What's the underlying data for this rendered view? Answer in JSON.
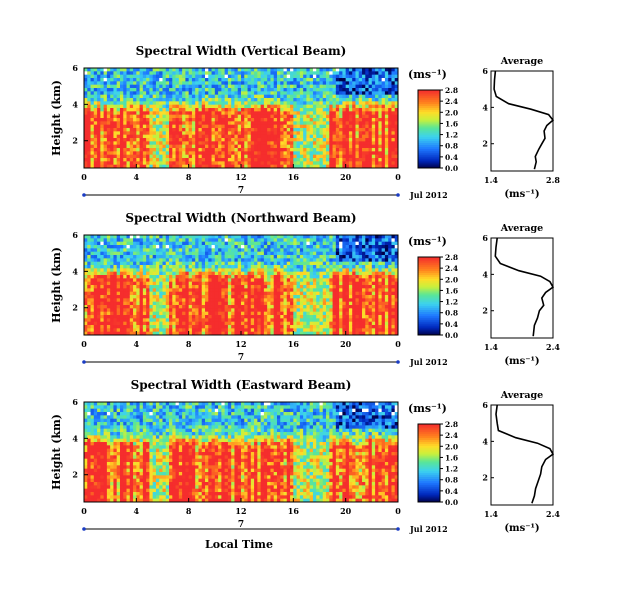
{
  "figure": {
    "xlabel": "Local Time",
    "date_label": "Jul 2012",
    "day_label": "7",
    "unit_label": "(ms⁻¹)"
  },
  "chart_data": [
    {
      "type": "heatmap",
      "title": "Spectral Width (Vertical Beam)",
      "xlabel": "Local Time",
      "ylabel": "Height (km)",
      "x_ticks": [
        "0",
        "4",
        "8",
        "12",
        "16",
        "20",
        "0"
      ],
      "y_ticks": [
        "2",
        "4",
        "6"
      ],
      "ylim": [
        0.5,
        6
      ],
      "colorbar": {
        "label": "(ms⁻¹)",
        "range": [
          0.0,
          2.8
        ],
        "ticks": [
          "0.0",
          "0.4",
          "0.8",
          "1.2",
          "1.6",
          "2.0",
          "2.4",
          "2.8"
        ]
      },
      "profile": {
        "title": "Average",
        "xlabel": "(ms⁻¹)",
        "xlim": [
          1.4,
          2.8
        ],
        "x_ticks": [
          "1.4",
          "2.8"
        ],
        "y_ticks": [
          "2",
          "4",
          "6"
        ],
        "points": [
          [
            1.5,
            6.0
          ],
          [
            1.48,
            5.5
          ],
          [
            1.47,
            5.0
          ],
          [
            1.52,
            4.6
          ],
          [
            1.8,
            4.2
          ],
          [
            2.3,
            3.9
          ],
          [
            2.7,
            3.6
          ],
          [
            2.8,
            3.3
          ],
          [
            2.66,
            3.0
          ],
          [
            2.6,
            2.7
          ],
          [
            2.62,
            2.3
          ],
          [
            2.55,
            2.0
          ],
          [
            2.48,
            1.7
          ],
          [
            2.4,
            1.3
          ],
          [
            2.42,
            1.0
          ],
          [
            2.38,
            0.6
          ]
        ]
      }
    },
    {
      "type": "heatmap",
      "title": "Spectral Width (Northward Beam)",
      "xlabel": "Local Time",
      "ylabel": "Height (km)",
      "x_ticks": [
        "0",
        "4",
        "8",
        "12",
        "16",
        "20",
        "0"
      ],
      "y_ticks": [
        "2",
        "4",
        "6"
      ],
      "ylim": [
        0.5,
        6
      ],
      "colorbar": {
        "label": "(ms⁻¹)",
        "range": [
          0.0,
          2.8
        ],
        "ticks": [
          "0.0",
          "0.4",
          "0.8",
          "1.2",
          "1.6",
          "2.0",
          "2.4",
          "2.8"
        ]
      },
      "profile": {
        "title": "Average",
        "xlabel": "(ms⁻¹)",
        "xlim": [
          1.4,
          2.4
        ],
        "x_ticks": [
          "1.4",
          "2.4"
        ],
        "y_ticks": [
          "2",
          "4",
          "6"
        ],
        "points": [
          [
            1.5,
            6.0
          ],
          [
            1.48,
            5.5
          ],
          [
            1.47,
            5.0
          ],
          [
            1.55,
            4.6
          ],
          [
            1.85,
            4.2
          ],
          [
            2.2,
            3.9
          ],
          [
            2.35,
            3.6
          ],
          [
            2.4,
            3.3
          ],
          [
            2.28,
            3.0
          ],
          [
            2.22,
            2.7
          ],
          [
            2.25,
            2.3
          ],
          [
            2.18,
            2.0
          ],
          [
            2.15,
            1.6
          ],
          [
            2.1,
            1.2
          ],
          [
            2.08,
            0.6
          ]
        ]
      }
    },
    {
      "type": "heatmap",
      "title": "Spectral Width (Eastward Beam)",
      "xlabel": "Local Time",
      "ylabel": "Height (km)",
      "x_ticks": [
        "0",
        "4",
        "8",
        "12",
        "16",
        "20",
        "0"
      ],
      "y_ticks": [
        "2",
        "4",
        "6"
      ],
      "ylim": [
        0.5,
        6
      ],
      "colorbar": {
        "label": "(ms⁻¹)",
        "range": [
          0.0,
          2.8
        ],
        "ticks": [
          "0.0",
          "0.4",
          "0.8",
          "1.2",
          "1.6",
          "2.0",
          "2.4",
          "2.8"
        ]
      },
      "profile": {
        "title": "Average",
        "xlabel": "(ms⁻¹)",
        "xlim": [
          1.4,
          2.4
        ],
        "x_ticks": [
          "1.4",
          "2.4"
        ],
        "y_ticks": [
          "2",
          "4",
          "6"
        ],
        "points": [
          [
            1.5,
            6.0
          ],
          [
            1.48,
            5.5
          ],
          [
            1.5,
            5.0
          ],
          [
            1.52,
            4.6
          ],
          [
            1.8,
            4.2
          ],
          [
            2.15,
            3.9
          ],
          [
            2.35,
            3.6
          ],
          [
            2.4,
            3.3
          ],
          [
            2.28,
            3.0
          ],
          [
            2.22,
            2.6
          ],
          [
            2.2,
            2.2
          ],
          [
            2.16,
            1.8
          ],
          [
            2.12,
            1.4
          ],
          [
            2.1,
            1.0
          ],
          [
            2.06,
            0.6
          ]
        ]
      }
    }
  ]
}
